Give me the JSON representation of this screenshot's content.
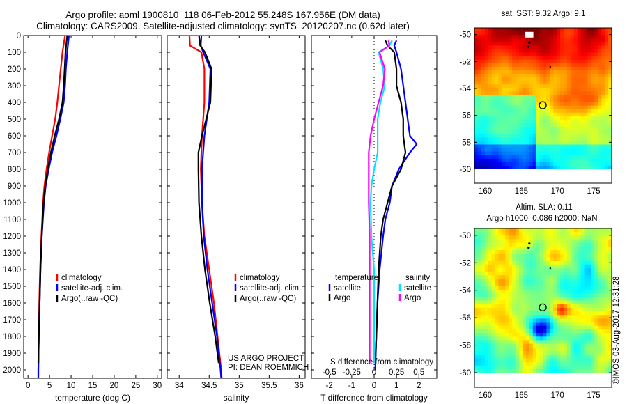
{
  "figure": {
    "title_line1": "Argo profile: aoml 1900810_118 06-Feb-2012 55.248S 167.956E (DM data)",
    "title_line2": "Climatology: CARS2009. Satellite-adjusted climatology: synTS_20120207.nc (0.62d later)",
    "project_line1": "US ARGO PROJECT",
    "project_line2": "PI: DEAN ROEMMICH",
    "credit": "©IMOS 03-Aug-2017 12:31:28"
  },
  "colors": {
    "climatology": "#ff0000",
    "satellite": "#0000ff",
    "argo": "#000000",
    "s_satellite": "#00e5ff",
    "s_argo": "#ff00ff"
  },
  "chart_data": [
    {
      "type": "line",
      "panel": "temperature",
      "xlabel": "temperature (deg C)",
      "ylabel": "",
      "xlim": [
        -1,
        31
      ],
      "ylim": [
        2050,
        0
      ],
      "xticks": [
        0,
        5,
        10,
        15,
        20,
        25,
        30
      ],
      "yticks": [
        0,
        100,
        200,
        300,
        400,
        500,
        600,
        700,
        800,
        900,
        1000,
        1100,
        1200,
        1300,
        1400,
        1500,
        1600,
        1700,
        1800,
        1900,
        2000
      ],
      "legend": [
        "climatology",
        "satellite-adj. clim.",
        "Argo(..raw -QC)"
      ],
      "series": [
        {
          "name": "climatology",
          "depth": [
            0,
            100,
            200,
            300,
            400,
            500,
            600,
            700,
            800,
            900,
            1000,
            1200,
            1400,
            1600,
            1800,
            2000,
            2050
          ],
          "values": [
            8.6,
            8.0,
            7.6,
            7.2,
            6.8,
            6.3,
            5.6,
            4.9,
            4.3,
            3.8,
            3.5,
            3.1,
            2.8,
            2.6,
            2.5,
            2.4,
            2.4
          ]
        },
        {
          "name": "satellite-adj. clim.",
          "depth": [
            0,
            100,
            200,
            300,
            400,
            500,
            600,
            700,
            800,
            900,
            1000,
            1200,
            1400,
            1600,
            1800,
            2000,
            2050
          ],
          "values": [
            9.5,
            9.1,
            8.8,
            8.6,
            8.3,
            7.5,
            6.6,
            5.6,
            4.8,
            4.1,
            3.7,
            3.2,
            2.9,
            2.7,
            2.5,
            2.4,
            2.4
          ]
        },
        {
          "name": "Argo(..raw -QC)",
          "depth": [
            0,
            100,
            200,
            300,
            400,
            500,
            600,
            700,
            800,
            900,
            1000,
            1200,
            1400,
            1600,
            1800,
            1960
          ],
          "values": [
            9.1,
            8.7,
            8.5,
            8.3,
            8.0,
            7.2,
            6.2,
            5.3,
            4.6,
            4.0,
            3.6,
            3.2,
            2.9,
            2.7,
            2.5,
            2.4
          ]
        }
      ]
    },
    {
      "type": "line",
      "panel": "salinity",
      "xlabel": "salinity",
      "ylabel": "",
      "xlim": [
        33.8,
        36.1
      ],
      "ylim": [
        2050,
        0
      ],
      "xticks": [
        34,
        34.5,
        35,
        35.5,
        36
      ],
      "legend": [
        "climatology",
        "satellite-adj. clim.",
        "Argo(..raw -QC)"
      ],
      "series": [
        {
          "name": "climatology",
          "depth": [
            0,
            60,
            100,
            200,
            400,
            600,
            800,
            1000,
            1200,
            1400,
            1600,
            1800,
            2000,
            2050
          ],
          "values": [
            34.17,
            34.18,
            34.37,
            34.42,
            34.42,
            34.38,
            34.36,
            34.38,
            34.42,
            34.5,
            34.58,
            34.64,
            34.7,
            34.71
          ]
        },
        {
          "name": "satellite-adj. clim.",
          "depth": [
            0,
            60,
            100,
            200,
            400,
            600,
            800,
            1000,
            1200,
            1400,
            1600,
            1800,
            2000,
            2050
          ],
          "values": [
            34.37,
            34.36,
            34.4,
            34.52,
            34.5,
            34.42,
            34.38,
            34.38,
            34.41,
            34.47,
            34.55,
            34.63,
            34.69,
            34.7
          ]
        },
        {
          "name": "Argo(..raw -QC)",
          "depth": [
            0,
            60,
            100,
            200,
            400,
            600,
            700,
            800,
            1000,
            1200,
            1400,
            1600,
            1800,
            1960
          ],
          "values": [
            34.33,
            34.35,
            34.43,
            34.54,
            34.52,
            34.38,
            34.32,
            34.32,
            34.33,
            34.37,
            34.43,
            34.51,
            34.6,
            34.66
          ]
        }
      ]
    },
    {
      "type": "line",
      "panel": "difference from climatology",
      "xlabel": "T difference from climatology",
      "xlabel_top": "S difference from climatology",
      "xlim": [
        -2.8,
        2.8
      ],
      "ylim": [
        2050,
        0
      ],
      "xticks": [
        -2,
        -1,
        0,
        1,
        2
      ],
      "xticks_s": [
        -0.5,
        -0.25,
        0,
        0.25,
        0.5
      ],
      "xtick_labels_s": [
        "-0.5",
        "-0.25",
        "0",
        "0.25",
        "0.5"
      ],
      "legend_temperature": "temperature",
      "legend_salinity": "salinity",
      "legend_items": [
        "satellite",
        "Argo",
        "satellite",
        "Argo"
      ],
      "series": [
        {
          "name": "temperature satellite",
          "depth": [
            30,
            60,
            100,
            200,
            300,
            400,
            500,
            600,
            650,
            700,
            800,
            900,
            1000,
            1100,
            1200,
            1400,
            1600,
            1800,
            2000
          ],
          "values": [
            1.0,
            0.9,
            1.0,
            1.2,
            1.3,
            1.4,
            1.5,
            1.6,
            1.9,
            1.6,
            1.1,
            0.8,
            0.7,
            0.5,
            0.4,
            0.25,
            0.15,
            0.1,
            0.05
          ]
        },
        {
          "name": "temperature Argo",
          "depth": [
            30,
            60,
            100,
            200,
            300,
            400,
            500,
            600,
            650,
            700,
            800,
            900,
            1000,
            1100,
            1200,
            1400,
            1600,
            1800,
            1960
          ],
          "values": [
            0.5,
            0.6,
            0.9,
            1.0,
            1.0,
            1.2,
            1.3,
            1.3,
            1.35,
            1.4,
            1.2,
            0.8,
            0.6,
            0.4,
            0.3,
            0.2,
            0.15,
            0.1,
            0.05
          ]
        },
        {
          "name": "salinity satellite",
          "depth": [
            30,
            60,
            100,
            200,
            300,
            400,
            500,
            600,
            700,
            800,
            900,
            1000,
            1200,
            1400,
            1600,
            1800,
            1960
          ],
          "values": [
            0.2,
            0.17,
            0.05,
            0.1,
            0.12,
            0.07,
            0.04,
            0.04,
            0.04,
            0.0,
            -0.03,
            -0.04,
            -0.03,
            0.0,
            0.0,
            0.0,
            0.0
          ]
        },
        {
          "name": "salinity Argo",
          "depth": [
            30,
            60,
            100,
            200,
            300,
            400,
            500,
            600,
            700,
            800,
            900,
            1000,
            1200,
            1400,
            1600,
            1800,
            1960
          ],
          "values": [
            0.16,
            0.17,
            0.06,
            0.12,
            0.1,
            0.05,
            0.0,
            -0.04,
            -0.06,
            -0.06,
            -0.06,
            -0.06,
            -0.05,
            -0.05,
            -0.05,
            -0.05,
            -0.05
          ]
        }
      ]
    },
    {
      "type": "heatmap",
      "panel": "SST map",
      "title": "sat. SST: 9.32 Argo: 9.1",
      "xlim": [
        158.5,
        177.5
      ],
      "ylim": [
        -60,
        -49.5
      ],
      "xticks": [
        160,
        165,
        170,
        175
      ],
      "yticks": [
        -50,
        -52,
        -54,
        -56,
        -58,
        -60
      ],
      "float_position": {
        "lon": 167.956,
        "lat": -55.248
      }
    },
    {
      "type": "heatmap",
      "panel": "SLA map",
      "title_line1": "Altim. SLA: 0.11",
      "title_line2": "Argo h1000: 0.086 h2000: NaN",
      "xlim": [
        158.5,
        177.5
      ],
      "ylim": [
        -60,
        -49.5
      ],
      "xticks": [
        160,
        165,
        170,
        175
      ],
      "yticks": [
        -50,
        -52,
        -54,
        -56,
        -58,
        -60
      ],
      "float_position": {
        "lon": 167.956,
        "lat": -55.248
      }
    }
  ]
}
